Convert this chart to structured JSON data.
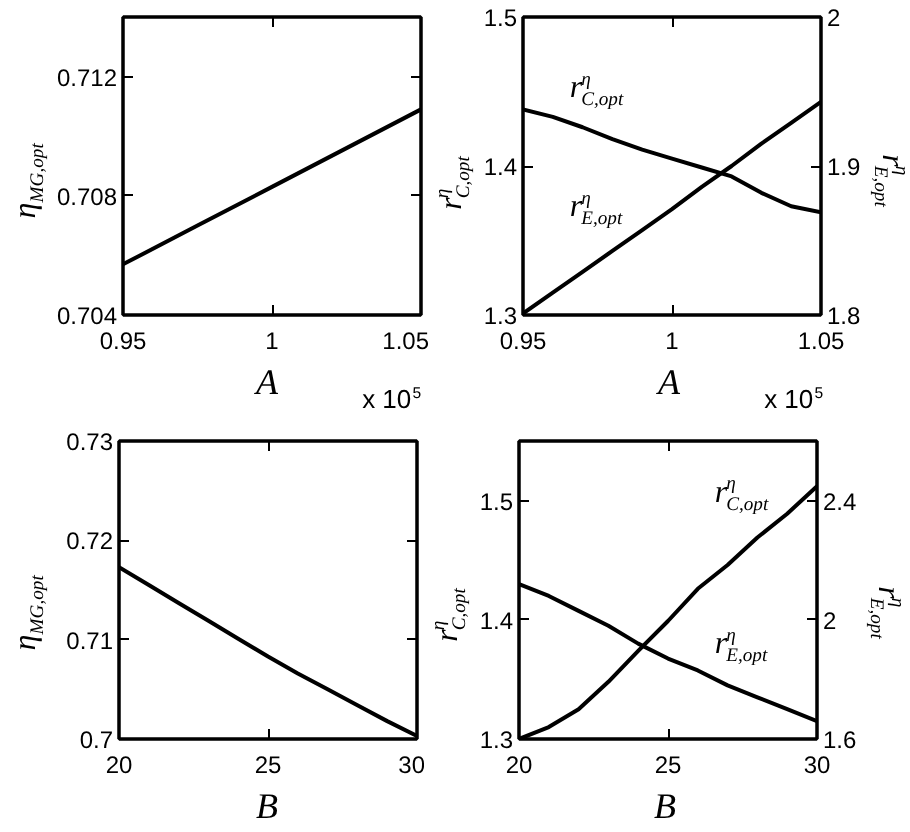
{
  "chart_data": [
    {
      "type": "line",
      "xlabel": "A",
      "ylabel": "η$_{MG,opt}$",
      "annotations": [
        "x 10$^{5}$"
      ],
      "x": [
        0.95,
        0.975,
        1,
        1.025,
        1.05
      ],
      "values": [
        0.7057,
        0.707,
        0.7083,
        0.7096,
        0.7109
      ],
      "color": "#000000",
      "xlim": [
        0.95,
        1.05
      ],
      "xticks": [
        0.95,
        1,
        1.05
      ],
      "ylim": [
        0.704,
        0.714
      ],
      "yticks": [
        0.704,
        0.708,
        0.712
      ]
    },
    {
      "type": "line",
      "xlabel": "A",
      "ylabel": "r$^{η}$$_{C,opt}$",
      "y2label": "r$^{η}$$_{E,opt}$",
      "annotations": [
        "x 10$^{5}$"
      ],
      "x": [
        0.95,
        0.96,
        0.97,
        0.98,
        0.99,
        1,
        1.01,
        1.02,
        1.03,
        1.04,
        1.05
      ],
      "series": [
        {
          "name": "r$^{η}$$_{C,opt}$",
          "color": "#000000",
          "values": [
            1.438,
            1.433,
            1.426,
            1.418,
            1.411,
            1.405,
            1.399,
            1.393,
            1.382,
            1.373,
            1.369
          ]
        },
        {
          "name": "r$^{η}$$_{E,opt}$",
          "color": "#000000",
          "axis": "y2",
          "values": [
            1.801,
            1.815,
            1.829,
            1.843,
            1.857,
            1.871,
            1.886,
            1.9,
            1.915,
            1.929,
            1.943
          ]
        }
      ],
      "xlim": [
        0.95,
        1.05
      ],
      "xticks": [
        0.95,
        1,
        1.05
      ],
      "ylim": [
        1.3,
        1.5
      ],
      "yticks": [
        1.3,
        1.4,
        1.5
      ],
      "y2lim": [
        1.8,
        2
      ],
      "y2ticks": [
        1.8,
        1.9,
        2
      ]
    },
    {
      "type": "line",
      "xlabel": "B",
      "ylabel": "η$_{MG,opt}$",
      "x": [
        20,
        21,
        22,
        23,
        24,
        25,
        26,
        27,
        28,
        29,
        30
      ],
      "values": [
        0.7173,
        0.7155,
        0.7137,
        0.7119,
        0.7101,
        0.7083,
        0.7066,
        0.705,
        0.7034,
        0.7018,
        0.7003
      ],
      "color": "#000000",
      "xlim": [
        20,
        30
      ],
      "xticks": [
        20,
        25,
        30
      ],
      "ylim": [
        0.7,
        0.73
      ],
      "yticks": [
        0.7,
        0.71,
        0.72,
        0.73
      ]
    },
    {
      "type": "line",
      "xlabel": "B",
      "ylabel": "r$^{η}$$_{C,opt}$",
      "y2label": "r$^{η}$$_{E,opt}$",
      "x": [
        20,
        21,
        22,
        23,
        24,
        25,
        26,
        27,
        28,
        29,
        30
      ],
      "series": [
        {
          "name": "r$^{η}$$_{C,opt}$",
          "color": "#000000",
          "values": [
            1.3,
            1.31,
            1.325,
            1.348,
            1.374,
            1.399,
            1.426,
            1.446,
            1.469,
            1.489,
            1.512
          ]
        },
        {
          "name": "r$^{η}$$_{E,opt}$",
          "color": "#000000",
          "axis": "y2",
          "values": [
            2.12,
            2.08,
            2.03,
            1.98,
            1.92,
            1.87,
            1.83,
            1.78,
            1.74,
            1.7,
            1.66
          ]
        }
      ],
      "xlim": [
        20,
        30
      ],
      "xticks": [
        20,
        25,
        30
      ],
      "ylim": [
        1.3,
        1.55
      ],
      "yticks": [
        1.3,
        1.4,
        1.5
      ],
      "y2lim": [
        1.6,
        2.6
      ],
      "y2ticks": [
        1.6,
        2,
        2.4
      ]
    }
  ]
}
